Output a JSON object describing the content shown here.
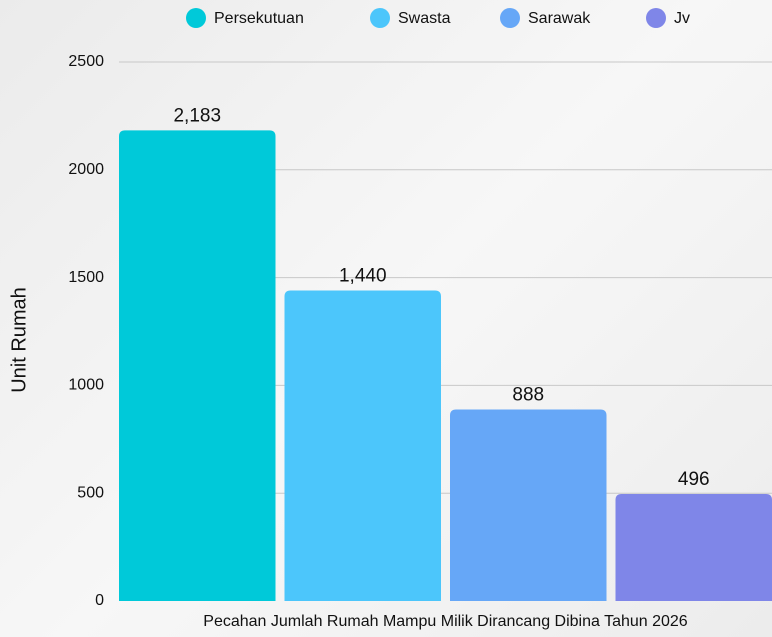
{
  "chart_data": {
    "type": "bar",
    "categories": [
      "Pecahan Jumlah Rumah Mampu Milik Dirancang Dibina Tahun 2026"
    ],
    "y_label": "Unit Rumah",
    "series": [
      {
        "name": "Persekutuan",
        "color": "#00c9d9",
        "values": [
          2183
        ],
        "value_labels": [
          "2,183"
        ]
      },
      {
        "name": "Swasta",
        "color": "#4cc6fb",
        "values": [
          1440
        ],
        "value_labels": [
          "1,440"
        ]
      },
      {
        "name": "Sarawak",
        "color": "#66a7f7",
        "values": [
          888
        ],
        "value_labels": [
          "888"
        ]
      },
      {
        "name": "Jv",
        "color": "#7f86e8",
        "values": [
          496
        ],
        "value_labels": [
          "496"
        ]
      }
    ],
    "ylim": [
      0,
      2500
    ],
    "yticks": [
      0,
      500,
      1000,
      1500,
      2000,
      2500
    ],
    "grid": true,
    "legend": "top"
  }
}
